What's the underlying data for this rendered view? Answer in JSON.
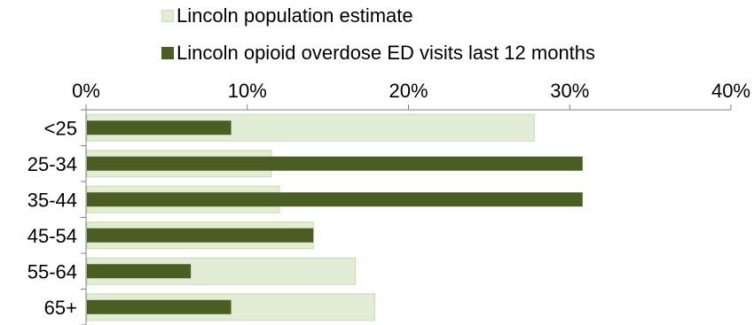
{
  "chart_data": {
    "type": "bar",
    "orientation": "horizontal",
    "title": "",
    "xlabel": "",
    "ylabel": "",
    "categories": [
      "<25",
      "25-34",
      "35-44",
      "45-54",
      "55-64",
      "65+"
    ],
    "series": [
      {
        "name": "Lincoln population estimate",
        "color": "#e3edd5",
        "border": "#c9dcaa",
        "values": [
          27.8,
          11.5,
          12.0,
          14.1,
          16.7,
          17.9
        ]
      },
      {
        "name": "Lincoln opioid overdose ED visits last 12 months",
        "color": "#4a5d23",
        "values": [
          9.0,
          30.8,
          30.8,
          14.1,
          6.5,
          9.0
        ]
      }
    ],
    "xlim": [
      0,
      40
    ],
    "x_ticks": [
      "0%",
      "10%",
      "20%",
      "30%",
      "40%"
    ],
    "x_axis_position": "top",
    "legend_placement": "top",
    "grid": false
  }
}
